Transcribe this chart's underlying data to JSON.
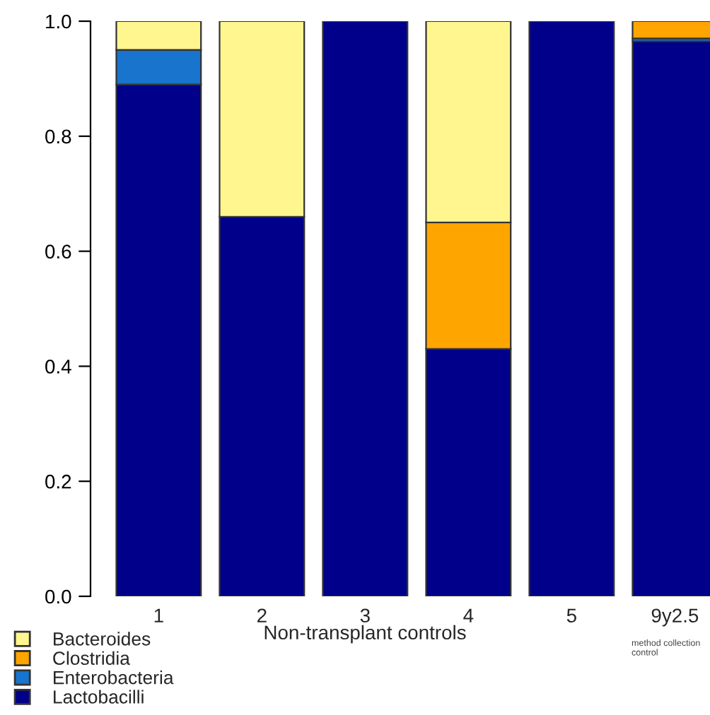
{
  "chart_data": {
    "type": "bar",
    "stacked": true,
    "xlabel": "Non-transplant controls",
    "categories": [
      "1",
      "2",
      "3",
      "4",
      "5",
      "9y2.5"
    ],
    "series": [
      {
        "name": "Lactobacilli",
        "color": "#00008b",
        "values": [
          0.89,
          0.66,
          1.0,
          0.43,
          1.0,
          0.965
        ]
      },
      {
        "name": "Enterobacteria",
        "color": "#1874cd",
        "values": [
          0.06,
          null,
          null,
          null,
          null,
          0.005
        ]
      },
      {
        "name": "Clostridia",
        "color": "#ffa500",
        "values": [
          null,
          null,
          null,
          0.22,
          null,
          0.03
        ]
      },
      {
        "name": "Bacteroides",
        "color": "#fff68f",
        "values": [
          0.05,
          0.34,
          null,
          0.35,
          null,
          null
        ]
      }
    ],
    "ylim": [
      0,
      1
    ],
    "yticks": [
      {
        "value": 0,
        "label": "0.0"
      },
      {
        "value": 0.2,
        "label": "0.2"
      },
      {
        "value": 0.4,
        "label": "0.4"
      },
      {
        "value": 0.6,
        "label": "0.6"
      },
      {
        "value": 0.8,
        "label": "0.8"
      },
      {
        "value": 1,
        "label": "1.0"
      }
    ],
    "annotations": [
      "method collection control"
    ],
    "legend": "bottom left",
    "grid": false
  }
}
